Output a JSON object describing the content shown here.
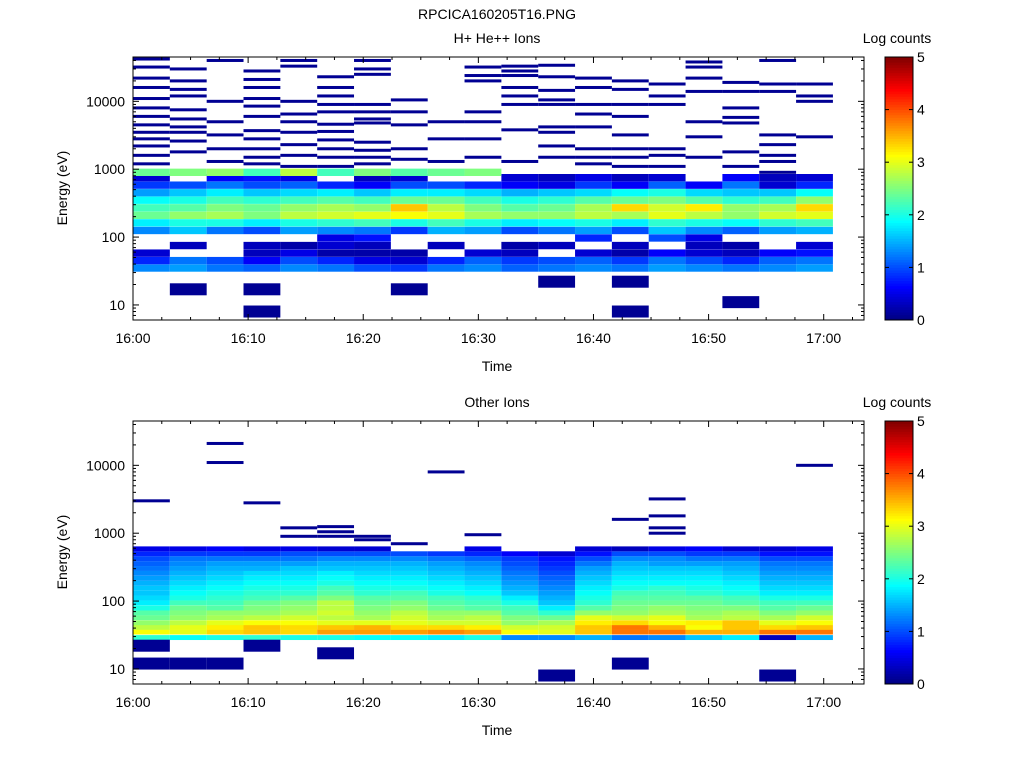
{
  "figure_title": "RPCICA160205T16.PNG",
  "colorbar": {
    "colormap": "jet",
    "colors": [
      "#00007f",
      "#0000ff",
      "#007fff",
      "#00ffff",
      "#7fff7f",
      "#ffff00",
      "#ff7f00",
      "#ff0000",
      "#7f0000"
    ],
    "range": [
      0,
      5
    ],
    "ticks": [
      "0",
      "1",
      "2",
      "3",
      "4",
      "5"
    ]
  },
  "chart_data": [
    {
      "type": "heatmap",
      "title": "H+ He++ Ions",
      "xlabel": "Time",
      "ylabel": "Energy (eV)",
      "y_scale": "log",
      "ylim": [
        6,
        45000
      ],
      "x_ticks": [
        "16:00",
        "16:10",
        "16:20",
        "16:30",
        "16:40",
        "16:50",
        "17:00"
      ],
      "y_ticks": [
        "10",
        "100",
        "1000",
        "10000"
      ],
      "colorbar_label": "Log counts",
      "time_columns": [
        "16:01:36",
        "16:04:48",
        "16:08:00",
        "16:11:12",
        "16:14:24",
        "16:17:36",
        "16:20:48",
        "16:24:00",
        "16:27:12",
        "16:30:24",
        "16:33:36",
        "16:36:48",
        "16:40:00",
        "16:43:12",
        "16:46:24",
        "16:49:36",
        "16:52:48",
        "16:56:00",
        "16:59:12"
      ],
      "energy_bands_eV": [
        35,
        45,
        58,
        75,
        97,
        125,
        162,
        209,
        270,
        349,
        450,
        582,
        750,
        900
      ],
      "log_counts": [
        [
          1.3,
          1.4,
          1.2,
          1.1,
          1.3,
          1.2,
          1.0,
          0.9,
          1.2,
          1.3,
          1.1,
          1.2,
          1.3,
          1.2,
          1.4,
          1.3,
          1.2,
          1.3,
          1.4
        ],
        [
          0.8,
          1.2,
          1.0,
          0.6,
          1.0,
          0.8,
          0.5,
          0.4,
          0.8,
          1.1,
          0.9,
          1.0,
          1.1,
          0.9,
          1.2,
          1.0,
          0.8,
          1.1,
          1.2
        ],
        [
          0.4,
          null,
          null,
          0.3,
          0.5,
          0.2,
          0.2,
          0.2,
          null,
          0.4,
          0.3,
          null,
          0.4,
          0.2,
          0.6,
          0.4,
          0.3,
          0.6,
          0.7
        ],
        [
          null,
          0.3,
          null,
          0.3,
          0.2,
          0.4,
          0.3,
          null,
          0.3,
          null,
          0.2,
          0.3,
          null,
          0.3,
          null,
          0.3,
          0.2,
          null,
          0.4
        ],
        [
          null,
          null,
          null,
          null,
          null,
          0.5,
          0.7,
          null,
          null,
          null,
          null,
          null,
          0.8,
          null,
          1.0,
          0.5,
          null,
          null,
          null
        ],
        [
          1.3,
          1.6,
          1.2,
          1.0,
          1.4,
          1.3,
          1.2,
          0.9,
          1.5,
          1.4,
          1.0,
          1.2,
          1.4,
          1.0,
          1.6,
          1.3,
          1.1,
          1.4,
          1.5
        ],
        [
          1.8,
          2.0,
          2.0,
          1.8,
          2.0,
          2.1,
          2.2,
          2.0,
          2.2,
          2.0,
          1.8,
          1.9,
          2.0,
          1.8,
          2.1,
          2.0,
          1.9,
          2.1,
          2.2
        ],
        [
          2.4,
          2.6,
          2.7,
          2.5,
          2.8,
          2.9,
          3.0,
          3.1,
          3.0,
          2.7,
          2.6,
          2.6,
          2.8,
          2.7,
          3.0,
          2.8,
          2.6,
          2.9,
          3.0
        ],
        [
          2.2,
          2.3,
          2.5,
          2.4,
          2.6,
          2.7,
          2.6,
          3.4,
          2.8,
          2.5,
          2.3,
          2.4,
          2.7,
          3.3,
          2.9,
          3.2,
          2.6,
          2.7,
          3.3
        ],
        [
          1.9,
          2.0,
          2.2,
          2.1,
          2.2,
          2.3,
          2.2,
          2.4,
          2.4,
          2.2,
          2.0,
          2.1,
          2.3,
          2.4,
          2.5,
          2.3,
          2.1,
          2.2,
          2.6
        ],
        [
          1.4,
          1.6,
          1.8,
          1.6,
          1.7,
          1.8,
          1.6,
          1.8,
          1.8,
          1.7,
          1.5,
          1.6,
          1.7,
          1.9,
          2.0,
          1.7,
          1.6,
          1.6,
          1.9
        ],
        [
          0.9,
          1.0,
          1.2,
          1.0,
          1.1,
          0.8,
          0.6,
          1.0,
          1.0,
          0.8,
          0.6,
          0.5,
          0.9,
          0.6,
          1.1,
          0.6,
          1.2,
          0.4,
          0.8
        ],
        [
          0.4,
          null,
          0.6,
          0.7,
          0.5,
          null,
          0.3,
          0.4,
          null,
          null,
          0.4,
          0.3,
          0.5,
          0.3,
          0.4,
          null,
          0.6,
          0.3,
          0.4
        ],
        [
          2.4,
          2.5,
          2.6,
          2.2,
          2.8,
          2.2,
          2.5,
          2.3,
          2.4,
          2.5,
          null,
          null,
          null,
          null,
          null,
          null,
          null,
          null,
          null
        ]
      ],
      "sparse_low_count_bins": [
        {
          "t": "16:04:48",
          "e": 17
        },
        {
          "t": "16:11:12",
          "e": 17
        },
        {
          "t": "16:11:12",
          "e": 8
        },
        {
          "t": "16:24:00",
          "e": 17
        },
        {
          "t": "16:36:48",
          "e": 22
        },
        {
          "t": "16:43:12",
          "e": 22
        },
        {
          "t": "16:43:12",
          "e": 8
        },
        {
          "t": "16:52:48",
          "e": 11
        }
      ],
      "sparse_high_energy_bins": [
        {
          "t": "16:01:36",
          "e": [
            1200,
            1600,
            2200,
            2800,
            3500,
            4500,
            6000,
            8000,
            11000,
            16000,
            22000,
            32000,
            42000
          ]
        },
        {
          "t": "16:04:48",
          "e": [
            1800,
            2600,
            3500,
            4200,
            5500,
            7500,
            12000,
            15000,
            20000,
            30000
          ]
        },
        {
          "t": "16:08:00",
          "e": [
            1300,
            2000,
            3200,
            5000,
            10000,
            40000
          ]
        },
        {
          "t": "16:11:12",
          "e": [
            1200,
            1500,
            2000,
            2800,
            3700,
            6000,
            8500,
            11000,
            16000,
            21000,
            28000
          ]
        },
        {
          "t": "16:14:24",
          "e": [
            1100,
            1600,
            2300,
            3500,
            5000,
            6500,
            10000,
            33000,
            40000
          ]
        },
        {
          "t": "16:17:36",
          "e": [
            1100,
            1500,
            2000,
            2700,
            3600,
            4600,
            7000,
            9000,
            12000,
            16000,
            23000
          ]
        },
        {
          "t": "16:20:48",
          "e": [
            1200,
            1500,
            1900,
            2500,
            4800,
            5500,
            7000,
            9000,
            25000,
            30000,
            40000
          ]
        },
        {
          "t": "16:24:00",
          "e": [
            1400,
            2000,
            4500,
            7000,
            10500
          ]
        },
        {
          "t": "16:27:12",
          "e": [
            1300,
            2800,
            5000
          ]
        },
        {
          "t": "16:30:24",
          "e": [
            1500,
            2800,
            5000,
            7000,
            20000,
            24000,
            32000
          ]
        },
        {
          "t": "16:33:36",
          "e": [
            1300,
            3800,
            9000,
            12000,
            16000,
            24000,
            28000,
            33000
          ]
        },
        {
          "t": "16:36:48",
          "e": [
            1500,
            2200,
            3500,
            4200,
            9000,
            10500,
            14500,
            23000,
            34000
          ]
        },
        {
          "t": "16:40:00",
          "e": [
            1200,
            1500,
            2000,
            4200,
            6500,
            9000,
            16000,
            22000
          ]
        },
        {
          "t": "16:43:12",
          "e": [
            1100,
            1500,
            2000,
            3200,
            6000,
            9000,
            15000,
            20000
          ]
        },
        {
          "t": "16:46:24",
          "e": [
            1100,
            1600,
            2000,
            9000,
            12000,
            18000
          ]
        },
        {
          "t": "16:49:36",
          "e": [
            1500,
            3000,
            5000,
            14000,
            22000,
            32000,
            38000
          ]
        },
        {
          "t": "16:52:48",
          "e": [
            1100,
            1800,
            4800,
            5800,
            8000,
            14000,
            19000
          ]
        },
        {
          "t": "16:56:00",
          "e": [
            900,
            1300,
            1600,
            2300,
            3200,
            14000,
            18000,
            40000
          ]
        },
        {
          "t": "16:59:12",
          "e": [
            3000,
            10000,
            12000,
            18000
          ]
        }
      ]
    },
    {
      "type": "heatmap",
      "title": "Other Ions",
      "xlabel": "Time",
      "ylabel": "Energy (eV)",
      "y_scale": "log",
      "ylim": [
        6,
        45000
      ],
      "x_ticks": [
        "16:00",
        "16:10",
        "16:20",
        "16:30",
        "16:40",
        "16:50",
        "17:00"
      ],
      "y_ticks": [
        "10",
        "100",
        "1000",
        "10000"
      ],
      "colorbar_label": "Log counts",
      "time_columns": [
        "16:01:36",
        "16:04:48",
        "16:08:00",
        "16:11:12",
        "16:14:24",
        "16:17:36",
        "16:20:48",
        "16:24:00",
        "16:27:12",
        "16:30:24",
        "16:33:36",
        "16:36:48",
        "16:40:00",
        "16:43:12",
        "16:46:24",
        "16:49:36",
        "16:52:48",
        "16:56:00",
        "16:59:12"
      ],
      "energy_bands_eV": [
        29,
        35,
        41,
        48,
        57,
        67,
        79,
        94,
        111,
        131,
        155,
        183,
        216,
        256,
        302,
        357,
        422,
        498,
        588
      ],
      "log_counts": [
        [
          2.1,
          1.9,
          2.0,
          2.1,
          2.0,
          2.0,
          1.9,
          1.9,
          1.8,
          2.0,
          1.3,
          1.3,
          1.5,
          1.2,
          1.3,
          1.6,
          1.8,
          0.3,
          1.5
        ],
        [
          3.1,
          3.0,
          3.3,
          3.4,
          3.3,
          3.6,
          3.6,
          3.6,
          3.7,
          3.6,
          3.1,
          3.0,
          3.4,
          3.8,
          3.8,
          3.5,
          3.5,
          3.8,
          3.8
        ],
        [
          2.8,
          3.0,
          3.2,
          3.4,
          3.3,
          3.4,
          3.5,
          3.3,
          3.3,
          3.2,
          2.9,
          2.9,
          3.4,
          3.8,
          3.5,
          3.1,
          3.4,
          3.3,
          3.4
        ],
        [
          2.6,
          2.8,
          3.0,
          3.1,
          3.1,
          3.0,
          3.0,
          3.0,
          2.9,
          2.9,
          2.6,
          2.7,
          3.2,
          3.3,
          3.1,
          3.2,
          3.4,
          3.0,
          3.1
        ],
        [
          2.4,
          2.6,
          2.7,
          2.8,
          2.9,
          2.8,
          2.7,
          2.9,
          2.7,
          2.8,
          2.5,
          2.4,
          3.0,
          2.9,
          3.0,
          2.7,
          2.8,
          2.7,
          2.9
        ],
        [
          2.3,
          2.5,
          2.6,
          2.6,
          2.7,
          2.9,
          2.6,
          2.8,
          2.6,
          2.6,
          2.3,
          2.1,
          2.6,
          2.6,
          2.7,
          2.6,
          2.7,
          2.5,
          2.6
        ],
        [
          2.0,
          2.4,
          2.3,
          2.5,
          2.6,
          2.8,
          2.5,
          2.6,
          2.4,
          2.3,
          2.2,
          1.8,
          2.3,
          2.5,
          2.6,
          2.5,
          2.5,
          2.3,
          2.4
        ],
        [
          1.8,
          2.2,
          2.2,
          2.4,
          2.5,
          2.8,
          2.4,
          2.5,
          2.3,
          2.2,
          2.0,
          1.6,
          2.1,
          2.4,
          2.4,
          2.4,
          2.3,
          2.2,
          2.2
        ],
        [
          1.7,
          2.0,
          2.1,
          2.2,
          2.3,
          2.5,
          2.3,
          2.3,
          2.2,
          2.1,
          1.8,
          1.5,
          2.0,
          2.3,
          2.3,
          2.3,
          2.2,
          2.0,
          2.0
        ],
        [
          1.6,
          1.9,
          2.0,
          2.1,
          2.1,
          2.3,
          2.1,
          2.2,
          2.0,
          1.9,
          1.6,
          1.4,
          1.9,
          2.2,
          2.2,
          2.1,
          2.0,
          1.8,
          1.8
        ],
        [
          1.6,
          1.8,
          1.9,
          2.0,
          2.0,
          2.2,
          2.0,
          2.0,
          1.9,
          1.8,
          1.5,
          1.3,
          1.8,
          2.0,
          2.1,
          2.0,
          1.9,
          1.7,
          1.7
        ],
        [
          1.5,
          1.7,
          1.8,
          1.9,
          1.9,
          2.0,
          1.9,
          1.9,
          1.8,
          1.7,
          1.4,
          1.2,
          1.7,
          1.9,
          1.9,
          1.9,
          1.8,
          1.6,
          1.6
        ],
        [
          1.4,
          1.6,
          1.7,
          1.8,
          1.8,
          1.9,
          1.8,
          1.8,
          1.7,
          1.6,
          1.3,
          1.1,
          1.6,
          1.8,
          1.8,
          1.8,
          1.7,
          1.5,
          1.5
        ],
        [
          1.3,
          1.5,
          1.6,
          1.7,
          1.7,
          1.8,
          1.7,
          1.7,
          1.6,
          1.5,
          1.2,
          1.0,
          1.5,
          1.7,
          1.7,
          1.7,
          1.6,
          1.4,
          1.4
        ],
        [
          1.2,
          1.4,
          1.5,
          1.5,
          1.6,
          1.6,
          1.6,
          1.6,
          1.5,
          1.4,
          1.1,
          0.9,
          1.4,
          1.6,
          1.6,
          1.6,
          1.5,
          1.3,
          1.3
        ],
        [
          1.1,
          1.3,
          1.4,
          1.4,
          1.4,
          1.5,
          1.5,
          1.5,
          1.4,
          1.3,
          1.0,
          0.8,
          1.2,
          1.5,
          1.4,
          1.4,
          1.4,
          1.2,
          1.2
        ],
        [
          1.0,
          1.2,
          1.2,
          1.2,
          1.2,
          1.3,
          1.3,
          1.3,
          1.2,
          1.1,
          0.9,
          0.7,
          1.0,
          1.3,
          1.3,
          1.2,
          1.2,
          1.0,
          1.0
        ],
        [
          0.8,
          0.9,
          0.9,
          0.9,
          1.0,
          1.0,
          1.0,
          1.0,
          0.9,
          0.8,
          0.6,
          0.4,
          0.7,
          1.0,
          1.0,
          0.9,
          0.9,
          0.7,
          0.7
        ],
        [
          0.5,
          0.5,
          0.6,
          0.5,
          0.5,
          0.4,
          0.4,
          null,
          null,
          0.5,
          null,
          null,
          0.4,
          0.3,
          0.5,
          0.6,
          0.4,
          0.4,
          0.5
        ]
      ],
      "sparse_low_count_bins": [
        {
          "t": "16:01:36",
          "e": 12
        },
        {
          "t": "16:04:48",
          "e": 12
        },
        {
          "t": "16:08:00",
          "e": 12
        },
        {
          "t": "16:01:36",
          "e": 22
        },
        {
          "t": "16:11:12",
          "e": 22
        },
        {
          "t": "16:17:36",
          "e": 17
        },
        {
          "t": "16:36:48",
          "e": 8
        },
        {
          "t": "16:43:12",
          "e": 12
        },
        {
          "t": "16:56:00",
          "e": 8
        }
      ],
      "sparse_high_energy_bins": [
        {
          "t": "16:01:36",
          "e": [
            3000
          ]
        },
        {
          "t": "16:08:00",
          "e": [
            11000,
            21000
          ]
        },
        {
          "t": "16:11:12",
          "e": [
            2800
          ]
        },
        {
          "t": "16:14:24",
          "e": [
            900,
            1200
          ]
        },
        {
          "t": "16:17:36",
          "e": [
            900,
            1050,
            1250
          ]
        },
        {
          "t": "16:20:48",
          "e": [
            800,
            900
          ]
        },
        {
          "t": "16:24:00",
          "e": [
            700
          ]
        },
        {
          "t": "16:27:12",
          "e": [
            8000
          ]
        },
        {
          "t": "16:30:24",
          "e": [
            950
          ]
        },
        {
          "t": "16:43:12",
          "e": [
            1600
          ]
        },
        {
          "t": "16:46:24",
          "e": [
            1000,
            1200,
            1800,
            3200
          ]
        },
        {
          "t": "16:59:12",
          "e": [
            10000
          ]
        }
      ]
    }
  ]
}
